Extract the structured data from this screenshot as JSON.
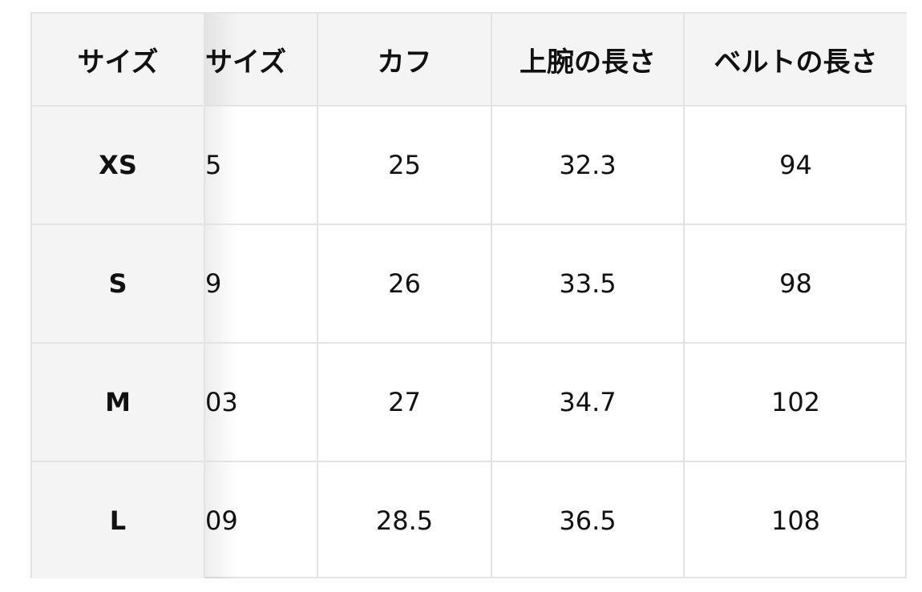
{
  "headers": [
    "サイズ",
    "サイズ",
    "カフ",
    "上腕の長さ",
    "ベルトの長さ"
  ],
  "rows": [
    {
      "size": "XS",
      "partial": "5",
      "cuff": "25",
      "upper_arm": "32.3",
      "belt": "94"
    },
    {
      "size": "S",
      "partial": "9",
      "cuff": "26",
      "upper_arm": "33.5",
      "belt": "98"
    },
    {
      "size": "M",
      "partial": "03",
      "cuff": "27",
      "upper_arm": "34.7",
      "belt": "102"
    },
    {
      "size": "L",
      "partial": "09",
      "cuff": "28.5",
      "upper_arm": "36.5",
      "belt": "108"
    }
  ]
}
